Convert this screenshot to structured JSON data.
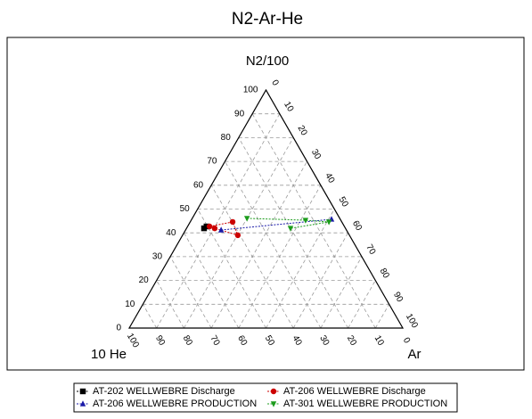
{
  "chart_data": {
    "type": "ternary",
    "title": "N2-Ar-He",
    "top_label": "N2/100",
    "right_label": "Ar",
    "left_label": "10 He",
    "n2_ticks": [
      0,
      10,
      20,
      30,
      40,
      50,
      60,
      70,
      80,
      90,
      100
    ],
    "ar_ticks": [
      0,
      10,
      20,
      30,
      40,
      50,
      60,
      70,
      80,
      90,
      100
    ],
    "he_ticks": [
      0,
      10,
      20,
      30,
      40,
      50,
      60,
      70,
      80,
      90,
      100
    ],
    "grid": true,
    "series": [
      {
        "name": "AT-202 WELLWEBRE Discharge",
        "color": "#000000",
        "marker": "square",
        "n2": [
          41.9,
          42.7
        ],
        "ar": [
          6.4,
          6.9
        ],
        "he": [
          51.7,
          50.4
        ]
      },
      {
        "name": "AT-206 WELLWEBRE Discharge",
        "color": "#cc0000",
        "marker": "circle",
        "n2": [
          42.7,
          44.6,
          39.0,
          41.9
        ],
        "ar": [
          8.0,
          15.5,
          20.2,
          10.3
        ],
        "he": [
          49.3,
          39.9,
          40.8,
          47.8
        ]
      },
      {
        "name": "AT-206 WELLWEBRE PRODUCTION",
        "color": "#1a1aa8",
        "marker": "triangle",
        "n2": [
          41.2,
          45.7
        ],
        "ar": [
          13.0,
          51.1
        ],
        "he": [
          45.8,
          3.2
        ]
      },
      {
        "name": "AT-301 WELLWEBRE PRODUCTION",
        "color": "#1c9c1c",
        "marker": "triangle-down",
        "n2": [
          46.1,
          45.3,
          44.6,
          41.9
        ],
        "ar": [
          20.0,
          41.8,
          50.7,
          38.0
        ],
        "he": [
          33.9,
          12.9,
          4.7,
          20.1
        ]
      }
    ]
  }
}
